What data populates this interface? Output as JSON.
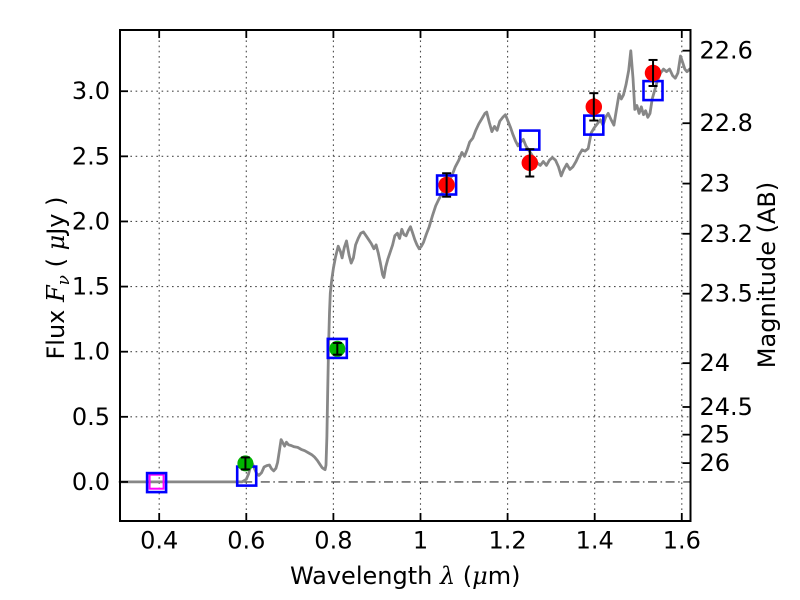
{
  "chart_data": {
    "type": "line",
    "title": "",
    "xlabel": "Wavelength λ (μm)",
    "xlabel_parts": [
      {
        "t": "Wavelength  ",
        "style": "plain"
      },
      {
        "t": "λ",
        "style": "math"
      },
      {
        "t": " (",
        "style": "plain"
      },
      {
        "t": "μ",
        "style": "math"
      },
      {
        "t": "m)",
        "style": "plain"
      }
    ],
    "ylabel_left": "Flux Fν ( μJy )",
    "ylabel_left_parts": [
      {
        "t": "Flux  ",
        "style": "plain"
      },
      {
        "t": "F",
        "style": "math"
      },
      {
        "t": "ν",
        "style": "math-sub"
      },
      {
        "t": " ( ",
        "style": "plain"
      },
      {
        "t": "μ",
        "style": "math"
      },
      {
        "t": "Jy )",
        "style": "plain"
      }
    ],
    "ylabel_right": "Magnitude (AB)",
    "xlim": [
      0.31,
      1.62
    ],
    "ylim": [
      -0.3,
      3.47
    ],
    "x_ticks": [
      0.4,
      0.6,
      0.8,
      1,
      1.2,
      1.4,
      1.6
    ],
    "x_tick_labels": [
      "0.4",
      "0.6",
      "0.8",
      "1",
      "1.2",
      "1.4",
      "1.6"
    ],
    "y_ticks_left": [
      0.0,
      0.5,
      1.0,
      1.5,
      2.0,
      2.5,
      3.0
    ],
    "y_tick_labels_left": [
      "0.0",
      "0.5",
      "1.0",
      "1.5",
      "2.0",
      "2.5",
      "3.0"
    ],
    "y_grid_values": [
      0.5,
      1.0,
      1.5,
      2.0,
      2.5,
      3.0
    ],
    "zero_flux_line": 0.0,
    "y_ticks_right_mag": [
      22.6,
      22.8,
      23,
      23.2,
      23.5,
      24,
      24.5,
      25,
      26
    ],
    "y_tick_labels_right": [
      "22.6",
      "22.8",
      "23",
      "23.2",
      "23.5",
      "24",
      "24.5",
      "25",
      "26"
    ],
    "ab_zeropoint": 23.9,
    "grid": true,
    "colors": {
      "spectrum": "#878787",
      "model_square": "#0000ff",
      "limit_square": "#ff00ff",
      "observed_optical": "#00b300",
      "observed_ir": "#ff0000",
      "error_bar": "#000000",
      "axis": "#000000",
      "grid": "#4a4a4a",
      "zero_line": "#555555"
    },
    "series": [
      {
        "name": "model-spectrum",
        "kind": "line",
        "color_key": "spectrum",
        "linewidth": 2.8,
        "points": [
          [
            0.31,
            0.0
          ],
          [
            0.4,
            0.0
          ],
          [
            0.48,
            0.0
          ],
          [
            0.55,
            0.0
          ],
          [
            0.59,
            0.0
          ],
          [
            0.6,
            0.02
          ],
          [
            0.605,
            0.06
          ],
          [
            0.61,
            0.12
          ],
          [
            0.614,
            0.14
          ],
          [
            0.619,
            0.1
          ],
          [
            0.624,
            0.065
          ],
          [
            0.629,
            0.05
          ],
          [
            0.635,
            0.07
          ],
          [
            0.641,
            0.115
          ],
          [
            0.647,
            0.125
          ],
          [
            0.653,
            0.13
          ],
          [
            0.658,
            0.1
          ],
          [
            0.663,
            0.085
          ],
          [
            0.668,
            0.105
          ],
          [
            0.672,
            0.15
          ],
          [
            0.676,
            0.24
          ],
          [
            0.68,
            0.325
          ],
          [
            0.684,
            0.3
          ],
          [
            0.688,
            0.275
          ],
          [
            0.692,
            0.305
          ],
          [
            0.697,
            0.285
          ],
          [
            0.703,
            0.28
          ],
          [
            0.71,
            0.27
          ],
          [
            0.718,
            0.265
          ],
          [
            0.726,
            0.25
          ],
          [
            0.734,
            0.24
          ],
          [
            0.742,
            0.225
          ],
          [
            0.75,
            0.21
          ],
          [
            0.757,
            0.19
          ],
          [
            0.763,
            0.165
          ],
          [
            0.769,
            0.135
          ],
          [
            0.774,
            0.11
          ],
          [
            0.778,
            0.1
          ],
          [
            0.781,
            0.095
          ],
          [
            0.783,
            0.13
          ],
          [
            0.785,
            0.35
          ],
          [
            0.787,
            0.7
          ],
          [
            0.789,
            1.05
          ],
          [
            0.791,
            1.3
          ],
          [
            0.793,
            1.45
          ],
          [
            0.796,
            1.55
          ],
          [
            0.8,
            1.64
          ],
          [
            0.805,
            1.73
          ],
          [
            0.811,
            1.81
          ],
          [
            0.816,
            1.77
          ],
          [
            0.82,
            1.72
          ],
          [
            0.825,
            1.8
          ],
          [
            0.83,
            1.85
          ],
          [
            0.836,
            1.74
          ],
          [
            0.841,
            1.68
          ],
          [
            0.846,
            1.72
          ],
          [
            0.851,
            1.82
          ],
          [
            0.857,
            1.87
          ],
          [
            0.863,
            1.91
          ],
          [
            0.869,
            1.92
          ],
          [
            0.875,
            1.89
          ],
          [
            0.881,
            1.86
          ],
          [
            0.887,
            1.83
          ],
          [
            0.893,
            1.79
          ],
          [
            0.898,
            1.82
          ],
          [
            0.903,
            1.76
          ],
          [
            0.908,
            1.68
          ],
          [
            0.913,
            1.59
          ],
          [
            0.916,
            1.57
          ],
          [
            0.92,
            1.65
          ],
          [
            0.925,
            1.71
          ],
          [
            0.93,
            1.76
          ],
          [
            0.936,
            1.82
          ],
          [
            0.941,
            1.89
          ],
          [
            0.947,
            1.91
          ],
          [
            0.952,
            1.87
          ],
          [
            0.957,
            1.94
          ],
          [
            0.962,
            1.9
          ],
          [
            0.967,
            1.89
          ],
          [
            0.972,
            1.93
          ],
          [
            0.977,
            1.96
          ],
          [
            0.982,
            1.91
          ],
          [
            0.987,
            1.86
          ],
          [
            0.992,
            1.82
          ],
          [
            0.997,
            1.79
          ],
          [
            1.002,
            1.81
          ],
          [
            1.007,
            1.84
          ],
          [
            1.013,
            1.9
          ],
          [
            1.02,
            1.96
          ],
          [
            1.028,
            2.05
          ],
          [
            1.035,
            2.12
          ],
          [
            1.042,
            2.17
          ],
          [
            1.05,
            2.22
          ],
          [
            1.058,
            2.27
          ],
          [
            1.066,
            2.31
          ],
          [
            1.073,
            2.36
          ],
          [
            1.08,
            2.42
          ],
          [
            1.088,
            2.47
          ],
          [
            1.095,
            2.53
          ],
          [
            1.101,
            2.5
          ],
          [
            1.107,
            2.55
          ],
          [
            1.113,
            2.61
          ],
          [
            1.12,
            2.64
          ],
          [
            1.127,
            2.7
          ],
          [
            1.134,
            2.75
          ],
          [
            1.141,
            2.79
          ],
          [
            1.148,
            2.83
          ],
          [
            1.152,
            2.84
          ],
          [
            1.158,
            2.76
          ],
          [
            1.164,
            2.69
          ],
          [
            1.17,
            2.73
          ],
          [
            1.176,
            2.7
          ],
          [
            1.182,
            2.77
          ],
          [
            1.189,
            2.8
          ],
          [
            1.195,
            2.82
          ],
          [
            1.201,
            2.77
          ],
          [
            1.207,
            2.72
          ],
          [
            1.212,
            2.67
          ],
          [
            1.218,
            2.62
          ],
          [
            1.224,
            2.58
          ],
          [
            1.23,
            2.61
          ],
          [
            1.236,
            2.63
          ],
          [
            1.242,
            2.58
          ],
          [
            1.248,
            2.55
          ],
          [
            1.254,
            2.52
          ],
          [
            1.261,
            2.48
          ],
          [
            1.268,
            2.45
          ],
          [
            1.275,
            2.43
          ],
          [
            1.282,
            2.46
          ],
          [
            1.289,
            2.43
          ],
          [
            1.296,
            2.47
          ],
          [
            1.303,
            2.49
          ],
          [
            1.31,
            2.47
          ],
          [
            1.317,
            2.42
          ],
          [
            1.323,
            2.35
          ],
          [
            1.329,
            2.4
          ],
          [
            1.336,
            2.44
          ],
          [
            1.343,
            2.4
          ],
          [
            1.35,
            2.42
          ],
          [
            1.357,
            2.46
          ],
          [
            1.364,
            2.51
          ],
          [
            1.371,
            2.55
          ],
          [
            1.378,
            2.54
          ],
          [
            1.385,
            2.56
          ],
          [
            1.392,
            2.68
          ],
          [
            1.399,
            2.72
          ],
          [
            1.406,
            2.75
          ],
          [
            1.413,
            2.78
          ],
          [
            1.419,
            2.74
          ],
          [
            1.425,
            2.8
          ],
          [
            1.431,
            2.83
          ],
          [
            1.438,
            2.78
          ],
          [
            1.444,
            2.74
          ],
          [
            1.45,
            2.86
          ],
          [
            1.456,
            2.98
          ],
          [
            1.461,
            2.94
          ],
          [
            1.466,
            2.97
          ],
          [
            1.472,
            3.05
          ],
          [
            1.478,
            3.16
          ],
          [
            1.483,
            3.31
          ],
          [
            1.488,
            3.1
          ],
          [
            1.492,
            2.86
          ],
          [
            1.497,
            2.89
          ],
          [
            1.502,
            2.83
          ],
          [
            1.507,
            2.88
          ],
          [
            1.512,
            2.82
          ],
          [
            1.517,
            2.85
          ],
          [
            1.522,
            2.8
          ],
          [
            1.527,
            2.83
          ],
          [
            1.532,
            2.94
          ],
          [
            1.538,
            3.01
          ],
          [
            1.544,
            3.08
          ],
          [
            1.551,
            3.14
          ],
          [
            1.558,
            3.17
          ],
          [
            1.565,
            3.15
          ],
          [
            1.572,
            3.17
          ],
          [
            1.579,
            3.12
          ],
          [
            1.585,
            3.1
          ],
          [
            1.591,
            3.14
          ],
          [
            1.597,
            3.27
          ],
          [
            1.602,
            3.22
          ],
          [
            1.607,
            3.17
          ],
          [
            1.612,
            3.15
          ],
          [
            1.618,
            3.17
          ]
        ]
      },
      {
        "name": "limit-photometry",
        "kind": "scatter",
        "marker": "open-square",
        "color_key": "limit_square",
        "size": 14,
        "stroke_width": 2,
        "points": [
          [
            0.394,
            0.002
          ]
        ]
      },
      {
        "name": "model-photometry",
        "kind": "scatter",
        "marker": "open-square",
        "color_key": "model_square",
        "size": 19,
        "stroke_width": 2.6,
        "points": [
          [
            0.394,
            -0.005
          ],
          [
            0.601,
            0.045
          ],
          [
            0.809,
            1.025
          ],
          [
            1.06,
            2.28
          ],
          [
            1.251,
            2.625
          ],
          [
            1.398,
            2.74
          ],
          [
            1.534,
            3.005
          ]
        ]
      },
      {
        "name": "observed-photometry-optical",
        "kind": "scatter",
        "marker": "circle",
        "color_key": "observed_optical",
        "size": 16,
        "points": [
          [
            0.598,
            0.142
          ],
          [
            0.809,
            1.022
          ]
        ],
        "yerr": [
          0.046,
          0.045
        ]
      },
      {
        "name": "observed-photometry-ir",
        "kind": "scatter",
        "marker": "circle",
        "color_key": "observed_ir",
        "size": 16.5,
        "points": [
          [
            1.06,
            2.28
          ],
          [
            1.251,
            2.45
          ],
          [
            1.398,
            2.88
          ],
          [
            1.534,
            3.14
          ]
        ],
        "yerr": [
          0.09,
          0.105,
          0.105,
          0.1
        ]
      }
    ]
  }
}
